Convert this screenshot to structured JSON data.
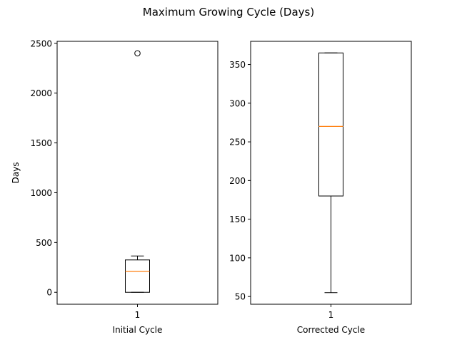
{
  "suptitle": "Maximum Growing Cycle (Days)",
  "chart_data": [
    {
      "type": "box",
      "xlabel": "Initial Cycle",
      "ylabel": "Days",
      "categories": [
        "1"
      ],
      "ylim": [
        -120,
        2520
      ],
      "yticks": [
        0,
        500,
        1000,
        1500,
        2000,
        2500
      ],
      "ytick_labels": [
        "0",
        "500",
        "1000",
        "1500",
        "2000",
        "2500"
      ],
      "box": {
        "whisker_low": 0,
        "q1": 0,
        "median": 210,
        "q3": 325,
        "whisker_high": 365
      },
      "outliers": [
        2400
      ],
      "colors": {
        "box": "#000000",
        "median": "#ff7f0e"
      }
    },
    {
      "type": "box",
      "xlabel": "Corrected Cycle",
      "ylabel": "",
      "categories": [
        "1"
      ],
      "ylim": [
        40,
        380
      ],
      "yticks": [
        50,
        100,
        150,
        200,
        250,
        300,
        350
      ],
      "ytick_labels": [
        "50",
        "100",
        "150",
        "200",
        "250",
        "300",
        "350"
      ],
      "box": {
        "whisker_low": 55,
        "q1": 180,
        "median": 270,
        "q3": 365,
        "whisker_high": 365
      },
      "outliers": [],
      "colors": {
        "box": "#000000",
        "median": "#ff7f0e"
      }
    }
  ]
}
